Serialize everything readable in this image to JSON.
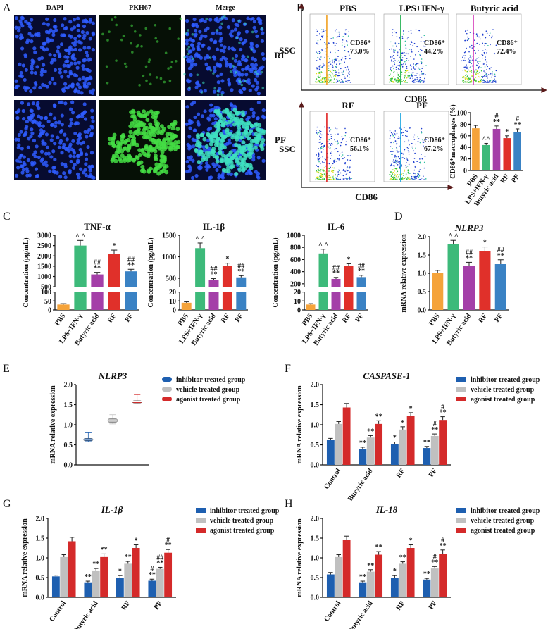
{
  "microscopy": {
    "panel": "A",
    "columns": [
      "DAPI",
      "PKH67",
      "Merge"
    ],
    "rows": [
      "RF",
      "PF"
    ]
  },
  "flow": {
    "panel": "B",
    "x_label": "CD86",
    "y_label": "SSC",
    "plots": [
      {
        "title": "PBS",
        "gate_label": "CD86⁺",
        "percent": "73.0%",
        "color": "#f0a020"
      },
      {
        "title": "LPS+IFN-γ",
        "gate_label": "CD86⁺",
        "percent": "44.2%",
        "color": "#20b050"
      },
      {
        "title": "Butyric acid",
        "gate_label": "CD86⁺",
        "percent": "72.4%",
        "color": "#d020b0"
      },
      {
        "title": "RF",
        "gate_label": "CD86⁺",
        "percent": "56.1%",
        "color": "#e02020"
      },
      {
        "title": "PF",
        "gate_label": "CD86⁺",
        "percent": "67.2%",
        "color": "#20a8e0"
      }
    ]
  },
  "chart_data": [
    {
      "type": "bar",
      "categories": [
        "PBS",
        "LPS+IFN-γ",
        "Butyric acid",
        "RF",
        "PF"
      ],
      "values": [
        73,
        44,
        72,
        56,
        67
      ],
      "errors": [
        5,
        3,
        5,
        4,
        5
      ],
      "colors": [
        "#f5a33a",
        "#3dba7a",
        "#a43fa8",
        "#e0302a",
        "#3a82c4"
      ],
      "significance": [
        [],
        [
          "^^"
        ],
        [
          "#",
          "**"
        ],
        [
          "*"
        ],
        [
          "#",
          "**"
        ]
      ],
      "y_label": "CD86⁺macrophages (%)",
      "ylim": [
        0,
        100
      ],
      "yticks": [
        0,
        20,
        40,
        60,
        80,
        100
      ]
    },
    {
      "type": "bar",
      "panel": "C",
      "title": "TNF-α",
      "categories": [
        "PBS",
        "LPS+IFN-γ",
        "Butyric acid",
        "RF",
        "PF"
      ],
      "values": [
        30,
        2500,
        1100,
        2100,
        1250
      ],
      "errors": [
        5,
        250,
        100,
        180,
        100
      ],
      "colors": [
        "#f5a33a",
        "#3dba7a",
        "#a43fa8",
        "#e0302a",
        "#3a82c4"
      ],
      "significance": [
        [],
        [
          "^ ^"
        ],
        [
          "##",
          "**"
        ],
        [
          "*"
        ],
        [
          "##",
          "**"
        ]
      ],
      "y_label": "Concentration (pg/mL)",
      "segments": [
        {
          "ylim": [
            0,
            100
          ],
          "yticks": [
            0,
            50,
            100
          ]
        },
        {
          "ylim": [
            500,
            3000
          ],
          "yticks": [
            500,
            1000,
            1500,
            2000,
            2500,
            3000
          ]
        }
      ]
    },
    {
      "type": "bar",
      "title": "IL-1β",
      "categories": [
        "PBS",
        "LPS+IFN-γ",
        "Butyric acid",
        "RF",
        "PF"
      ],
      "values": [
        8,
        1200,
        450,
        780,
        520
      ],
      "errors": [
        1,
        120,
        40,
        70,
        40
      ],
      "colors": [
        "#f5a33a",
        "#3dba7a",
        "#a43fa8",
        "#e0302a",
        "#3a82c4"
      ],
      "significance": [
        [],
        [
          "^ ^"
        ],
        [
          "##",
          "**"
        ],
        [
          "*"
        ],
        [
          "##",
          "**"
        ]
      ],
      "y_label": "Concentration (pg/mL)",
      "segments": [
        {
          "ylim": [
            0,
            20
          ],
          "yticks": [
            0,
            10,
            20
          ]
        },
        {
          "ylim": [
            300,
            1500
          ],
          "yticks": [
            500,
            1000,
            1500
          ]
        }
      ]
    },
    {
      "type": "bar",
      "title": "IL-6",
      "categories": [
        "PBS",
        "LPS+IFN-γ",
        "Butyric acid",
        "RF",
        "PF"
      ],
      "values": [
        6,
        700,
        280,
        490,
        310
      ],
      "errors": [
        1,
        70,
        25,
        40,
        30
      ],
      "colors": [
        "#f5a33a",
        "#3dba7a",
        "#a43fa8",
        "#e0302a",
        "#3a82c4"
      ],
      "significance": [
        [],
        [
          "^ ^"
        ],
        [
          "##",
          "**"
        ],
        [
          "*"
        ],
        [
          "##",
          "**"
        ]
      ],
      "y_label": "Concentration (pg/mL)",
      "segments": [
        {
          "ylim": [
            0,
            20
          ],
          "yticks": [
            0,
            10,
            20
          ]
        },
        {
          "ylim": [
            150,
            1000
          ],
          "yticks": [
            200,
            400,
            600,
            800,
            1000
          ]
        }
      ]
    },
    {
      "type": "bar",
      "panel": "D",
      "title": "NLRP3",
      "italic_title": true,
      "categories": [
        "PBS",
        "LPS+IFN-γ",
        "Butyric acid",
        "RF",
        "PF"
      ],
      "values": [
        1.0,
        1.8,
        1.2,
        1.6,
        1.25
      ],
      "errors": [
        0.08,
        0.1,
        0.1,
        0.12,
        0.12
      ],
      "colors": [
        "#f5a33a",
        "#3dba7a",
        "#a43fa8",
        "#e0302a",
        "#3a82c4"
      ],
      "significance": [
        [],
        [
          "^ ^"
        ],
        [
          "##",
          "**"
        ],
        [
          "*"
        ],
        [
          "##",
          "**"
        ]
      ],
      "y_label": "mRNA relative expression",
      "ylim": [
        0,
        2
      ],
      "yticks": [
        {
          "value": 0,
          "label": "0.0"
        },
        0.5,
        {
          "value": 1,
          "label": "1.0"
        },
        1.5,
        {
          "value": 2,
          "label": "2.0"
        }
      ]
    },
    {
      "type": "box",
      "panel": "E",
      "title": "NLRP3",
      "italic_title": true,
      "y_label": "mRNA relative expression",
      "ylim": [
        0,
        2
      ],
      "yticks": [
        {
          "value": 0,
          "label": "0.0"
        },
        0.5,
        {
          "value": 1,
          "label": "1.0"
        },
        1.5,
        {
          "value": 2,
          "label": "2.0"
        }
      ],
      "series": [
        {
          "name": "inhibitor treated group",
          "color": "#1e5fb0",
          "min": 0.58,
          "q1": 0.6,
          "median": 0.63,
          "q3": 0.66,
          "max": 0.8
        },
        {
          "name": "vehicle treated group",
          "color": "#c0c0c0",
          "min": 1.02,
          "q1": 1.06,
          "median": 1.1,
          "q3": 1.15,
          "max": 1.25
        },
        {
          "name": "agonist treated group",
          "color": "#d42a2a",
          "min": 1.52,
          "q1": 1.54,
          "median": 1.57,
          "q3": 1.6,
          "max": 1.75
        }
      ]
    },
    {
      "type": "grouped_bar",
      "panel": "F",
      "title": "CASPASE-1",
      "italic_title": true,
      "categories": [
        "Control",
        "Buryric acid",
        "RF",
        "PF"
      ],
      "y_label": "mRNA relative expression",
      "ylim": [
        0,
        2
      ],
      "yticks": [
        {
          "value": 0,
          "label": "0.0"
        },
        0.5,
        {
          "value": 1,
          "label": "1.0"
        },
        1.5,
        {
          "value": 2,
          "label": "2.0"
        }
      ],
      "series": [
        {
          "name": "inhibitor treated group",
          "color": "#1e5fb0",
          "values": [
            0.62,
            0.4,
            0.52,
            0.42
          ],
          "errors": [
            0.04,
            0.04,
            0.05,
            0.04
          ],
          "significance": [
            [],
            [
              "**"
            ],
            [
              "*"
            ],
            [
              "**"
            ]
          ]
        },
        {
          "name": "vehicle treated group",
          "color": "#c0c0c0",
          "values": [
            1.02,
            0.68,
            0.88,
            0.72
          ],
          "errors": [
            0.06,
            0.05,
            0.07,
            0.05
          ],
          "significance": [
            [],
            [
              "**"
            ],
            [
              "*"
            ],
            [
              "#",
              "**"
            ]
          ]
        },
        {
          "name": "agonist treated group",
          "color": "#d42a2a",
          "values": [
            1.43,
            1.02,
            1.22,
            1.12
          ],
          "errors": [
            0.1,
            0.08,
            0.08,
            0.08
          ],
          "significance": [
            [],
            [
              "**"
            ],
            [
              "*"
            ],
            [
              "#",
              "**"
            ]
          ]
        }
      ]
    },
    {
      "type": "grouped_bar",
      "panel": "G",
      "title": "IL-1β",
      "italic_title": true,
      "categories": [
        "Control",
        "Butyric acid",
        "RF",
        "PF"
      ],
      "y_label": "mRNA relative expression",
      "ylim": [
        0,
        2
      ],
      "yticks": [
        {
          "value": 0,
          "label": "0.0"
        },
        0.5,
        {
          "value": 1,
          "label": "1.0"
        },
        1.5,
        {
          "value": 2,
          "label": "2.0"
        }
      ],
      "series": [
        {
          "name": "inhibitor treated group",
          "color": "#1e5fb0",
          "values": [
            0.53,
            0.38,
            0.5,
            0.42
          ],
          "errors": [
            0.03,
            0.03,
            0.05,
            0.04
          ],
          "significance": [
            [],
            [
              "**"
            ],
            [
              "*"
            ],
            [
              "#",
              "**"
            ]
          ]
        },
        {
          "name": "vehicle treated group",
          "color": "#c0c0c0",
          "values": [
            1.02,
            0.68,
            0.85,
            0.72
          ],
          "errors": [
            0.06,
            0.05,
            0.06,
            0.04
          ],
          "significance": [
            [],
            [
              "**"
            ],
            [
              "**"
            ],
            [
              "##",
              "**"
            ]
          ]
        },
        {
          "name": "agonist treated group",
          "color": "#d42a2a",
          "values": [
            1.42,
            1.02,
            1.25,
            1.13
          ],
          "errors": [
            0.1,
            0.08,
            0.08,
            0.08
          ],
          "significance": [
            [],
            [
              "**"
            ],
            [
              "*"
            ],
            [
              "#",
              "**"
            ]
          ]
        }
      ]
    },
    {
      "type": "grouped_bar",
      "panel": "H",
      "title": "IL-18",
      "italic_title": true,
      "categories": [
        "Control",
        "Butyric acid",
        "RF",
        "PF"
      ],
      "y_label": "mRNA relative expression",
      "ylim": [
        0,
        2
      ],
      "yticks": [
        {
          "value": 0,
          "label": "0.0"
        },
        0.5,
        {
          "value": 1,
          "label": "1.0"
        },
        1.5,
        {
          "value": 2,
          "label": "2.0"
        }
      ],
      "series": [
        {
          "name": "inhibitor treated group",
          "color": "#1e5fb0",
          "values": [
            0.58,
            0.38,
            0.5,
            0.45
          ],
          "errors": [
            0.05,
            0.03,
            0.05,
            0.03
          ],
          "significance": [
            [],
            [
              "**"
            ],
            [
              "*"
            ],
            [
              "**"
            ]
          ]
        },
        {
          "name": "vehicle treated group",
          "color": "#c0c0c0",
          "values": [
            1.02,
            0.65,
            0.85,
            0.73
          ],
          "errors": [
            0.06,
            0.05,
            0.05,
            0.05
          ],
          "significance": [
            [],
            [
              "**"
            ],
            [
              "**"
            ],
            [
              "#",
              "**"
            ]
          ]
        },
        {
          "name": "agonist treated group",
          "color": "#d42a2a",
          "values": [
            1.45,
            1.08,
            1.25,
            1.1
          ],
          "errors": [
            0.1,
            0.08,
            0.08,
            0.1
          ],
          "significance": [
            [],
            [
              "**"
            ],
            [
              "*"
            ],
            [
              "#",
              "**"
            ]
          ]
        }
      ]
    }
  ]
}
